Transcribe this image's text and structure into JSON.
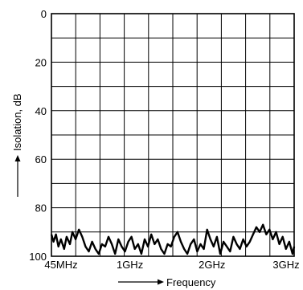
{
  "chart_data": {
    "type": "line",
    "xlabel": "Frequency",
    "ylabel": "Isolation, dB",
    "xticks": [
      {
        "label": "45MHz",
        "value": 0.045
      },
      {
        "label": "1GHz",
        "value": 1.0
      },
      {
        "label": "2GHz",
        "value": 2.0
      },
      {
        "label": "3GHz",
        "value": 3.0
      }
    ],
    "yticks": [
      {
        "label": "0",
        "value": 0
      },
      {
        "label": "20",
        "value": 20
      },
      {
        "label": "40",
        "value": 40
      },
      {
        "label": "60",
        "value": 60
      },
      {
        "label": "80",
        "value": 80
      },
      {
        "label": "100",
        "value": 100
      }
    ],
    "xlim": [
      0.045,
      3.0
    ],
    "ylim": [
      0,
      100
    ],
    "y_inverted": true,
    "grid": true,
    "grid_divisions": {
      "x": 10,
      "y": 10
    },
    "series": [
      {
        "x": [
          0.045,
          0.07,
          0.1,
          0.13,
          0.16,
          0.2,
          0.23,
          0.27,
          0.3,
          0.34,
          0.38,
          0.42,
          0.46,
          0.5,
          0.54,
          0.58,
          0.62,
          0.66,
          0.7,
          0.74,
          0.78,
          0.82,
          0.86,
          0.9,
          0.94,
          0.98,
          1.02,
          1.06,
          1.1,
          1.14,
          1.18,
          1.22,
          1.26,
          1.3,
          1.34,
          1.38,
          1.42,
          1.46,
          1.5,
          1.54,
          1.58,
          1.62,
          1.66,
          1.7,
          1.74,
          1.78,
          1.82,
          1.86,
          1.9,
          1.94,
          1.98,
          2.02,
          2.06,
          2.1,
          2.14,
          2.18,
          2.22,
          2.26,
          2.3,
          2.34,
          2.38,
          2.42,
          2.46,
          2.5,
          2.54,
          2.58,
          2.62,
          2.66,
          2.7,
          2.74,
          2.78,
          2.82,
          2.86,
          2.9,
          2.94,
          2.98,
          3.0
        ],
        "values": [
          91,
          94,
          91,
          96,
          93,
          97,
          92,
          95,
          90,
          93,
          89,
          92,
          96,
          98,
          94,
          97,
          99,
          95,
          96,
          92,
          95,
          99,
          93,
          96,
          98,
          94,
          92,
          97,
          95,
          99,
          93,
          96,
          91,
          95,
          93,
          97,
          99,
          95,
          96,
          92,
          90,
          94,
          97,
          99,
          95,
          93,
          98,
          95,
          97,
          89,
          93,
          96,
          92,
          99,
          94,
          96,
          98,
          92,
          95,
          97,
          93,
          96,
          94,
          91,
          88,
          90,
          87,
          91,
          89,
          93,
          90,
          95,
          92,
          97,
          94,
          99,
          96
        ]
      }
    ]
  }
}
